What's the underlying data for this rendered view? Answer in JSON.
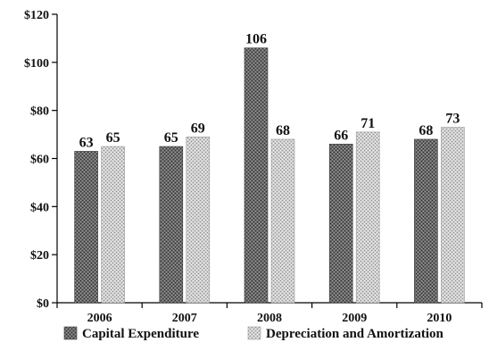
{
  "chart_data": {
    "type": "bar",
    "categories": [
      "2006",
      "2007",
      "2008",
      "2009",
      "2010"
    ],
    "series": [
      {
        "name": "Capital Expenditure",
        "values": [
          63,
          65,
          106,
          66,
          68
        ],
        "color": "#555555"
      },
      {
        "name": "Depreciation and Amortization",
        "values": [
          65,
          69,
          68,
          71,
          73
        ],
        "color": "#b8b8b8"
      }
    ],
    "y_ticks": [
      "$0",
      "$20",
      "$40",
      "$60",
      "$80",
      "$100",
      "$120"
    ],
    "ylim": [
      0,
      120
    ],
    "title": "",
    "xlabel": "",
    "ylabel": "",
    "grid": false,
    "legend_position": "bottom"
  }
}
